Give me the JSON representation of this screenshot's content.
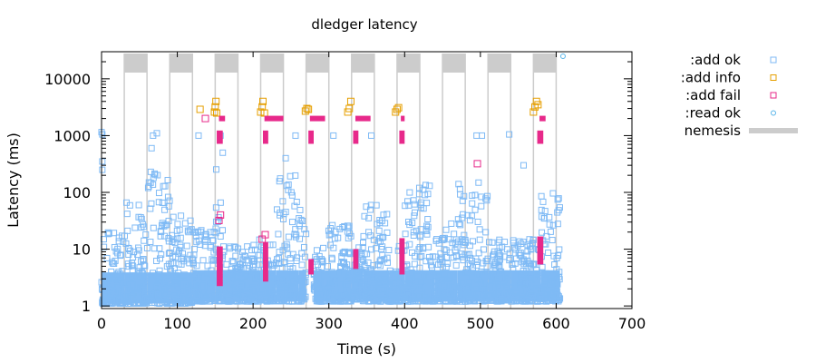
{
  "chart_data": {
    "type": "scatter",
    "title": "dledger latency",
    "xlabel": "Time (s)",
    "ylabel": "Latency (ms)",
    "xlim": [
      0,
      700
    ],
    "ylim": [
      0.9,
      30000
    ],
    "yscale": "log",
    "x_ticks": [
      0,
      100,
      200,
      300,
      400,
      500,
      600,
      700
    ],
    "y_ticks": [
      1,
      10,
      100,
      1000,
      10000
    ],
    "legend_position": "right",
    "grid": false,
    "series": [
      {
        "name": ":add ok",
        "marker": "square",
        "color": "#7fbaf5",
        "bands": [
          {
            "x": [
              0,
              30
            ],
            "low": 1.1,
            "high": 20
          },
          {
            "x": [
              30,
              60
            ],
            "low": 1.1,
            "high": 80
          },
          {
            "x": [
              60,
              90
            ],
            "low": 1.1,
            "high": 400
          },
          {
            "x": [
              90,
              120
            ],
            "low": 1.1,
            "high": 40
          },
          {
            "x": [
              120,
              150
            ],
            "low": 1.2,
            "high": 25
          },
          {
            "x": [
              150,
              160
            ],
            "low": 1.2,
            "high": 300
          },
          {
            "x": [
              160,
              210
            ],
            "low": 1.2,
            "high": 15
          },
          {
            "x": [
              210,
              230
            ],
            "low": 1.2,
            "high": 12
          },
          {
            "x": [
              230,
              260
            ],
            "low": 1.2,
            "high": 300
          },
          {
            "x": [
              260,
              270
            ],
            "low": 1.2,
            "high": 60
          },
          {
            "x": [
              280,
              295
            ],
            "low": 1.2,
            "high": 12
          },
          {
            "x": [
              295,
              330
            ],
            "low": 1.2,
            "high": 30
          },
          {
            "x": [
              330,
              345
            ],
            "low": 1.3,
            "high": 12
          },
          {
            "x": [
              345,
              380
            ],
            "low": 1.2,
            "high": 60
          },
          {
            "x": [
              380,
              400
            ],
            "low": 1.2,
            "high": 12
          },
          {
            "x": [
              400,
              440
            ],
            "low": 1.2,
            "high": 150
          },
          {
            "x": [
              440,
              470
            ],
            "low": 1.2,
            "high": 30
          },
          {
            "x": [
              470,
              510
            ],
            "low": 1.2,
            "high": 150
          },
          {
            "x": [
              510,
              540
            ],
            "low": 1.2,
            "high": 15
          },
          {
            "x": [
              540,
              580
            ],
            "low": 1.2,
            "high": 15
          },
          {
            "x": [
              580,
              605
            ],
            "low": 1.2,
            "high": 100
          }
        ],
        "outliers": [
          {
            "x": 0,
            "y": 1150
          },
          {
            "x": 1,
            "y": 1050
          },
          {
            "x": 1,
            "y": 350
          },
          {
            "x": 1,
            "y": 250
          },
          {
            "x": 66,
            "y": 600
          },
          {
            "x": 68,
            "y": 1000
          },
          {
            "x": 73,
            "y": 1100
          },
          {
            "x": 128,
            "y": 1000
          },
          {
            "x": 157,
            "y": 1000
          },
          {
            "x": 160,
            "y": 500
          },
          {
            "x": 243,
            "y": 400
          },
          {
            "x": 256,
            "y": 1000
          },
          {
            "x": 306,
            "y": 1000
          },
          {
            "x": 356,
            "y": 1000
          },
          {
            "x": 495,
            "y": 1000
          },
          {
            "x": 502,
            "y": 1000
          },
          {
            "x": 538,
            "y": 1050
          },
          {
            "x": 557,
            "y": 300
          }
        ]
      },
      {
        "name": ":add info",
        "marker": "square",
        "color": "#e69f00",
        "points": [
          {
            "x": 130,
            "y": 2900
          },
          {
            "x": 149,
            "y": 2600
          },
          {
            "x": 150,
            "y": 3200
          },
          {
            "x": 151,
            "y": 4000
          },
          {
            "x": 152,
            "y": 2500
          },
          {
            "x": 210,
            "y": 2600
          },
          {
            "x": 212,
            "y": 3200
          },
          {
            "x": 213,
            "y": 4000
          },
          {
            "x": 215,
            "y": 2500
          },
          {
            "x": 269,
            "y": 2700
          },
          {
            "x": 271,
            "y": 3000
          },
          {
            "x": 273,
            "y": 2900
          },
          {
            "x": 325,
            "y": 2600
          },
          {
            "x": 327,
            "y": 3000
          },
          {
            "x": 329,
            "y": 4000
          },
          {
            "x": 388,
            "y": 2600
          },
          {
            "x": 390,
            "y": 2900
          },
          {
            "x": 392,
            "y": 3100
          },
          {
            "x": 570,
            "y": 2600
          },
          {
            "x": 572,
            "y": 3200
          },
          {
            "x": 574,
            "y": 4000
          },
          {
            "x": 576,
            "y": 3500
          }
        ]
      },
      {
        "name": ":add fail",
        "marker": "square",
        "color": "#e7298a",
        "fill_bands": [
          {
            "x": [
              155,
              163
            ],
            "y": [
              2000,
              2000
            ]
          },
          {
            "x": [
              152,
              160
            ],
            "y": [
              800,
              1100
            ]
          },
          {
            "x": [
              152,
              160
            ],
            "y": [
              2.5,
              10
            ]
          },
          {
            "x": [
              215,
              240
            ],
            "y": [
              2000,
              2000
            ]
          },
          {
            "x": [
              213,
              220
            ],
            "y": [
              800,
              1100
            ]
          },
          {
            "x": [
              213,
              220
            ],
            "y": [
              3,
              12
            ]
          },
          {
            "x": [
              275,
              295
            ],
            "y": [
              2000,
              2000
            ]
          },
          {
            "x": [
              273,
              280
            ],
            "y": [
              800,
              1100
            ]
          },
          {
            "x": [
              273,
              280
            ],
            "y": [
              4,
              6
            ]
          },
          {
            "x": [
              335,
              355
            ],
            "y": [
              2000,
              2000
            ]
          },
          {
            "x": [
              332,
              339
            ],
            "y": [
              800,
              1100
            ]
          },
          {
            "x": [
              332,
              339
            ],
            "y": [
              5,
              9
            ]
          },
          {
            "x": [
              395,
              400
            ],
            "y": [
              2000,
              2000
            ]
          },
          {
            "x": [
              393,
              400
            ],
            "y": [
              800,
              1100
            ]
          },
          {
            "x": [
              393,
              400
            ],
            "y": [
              4,
              14
            ]
          },
          {
            "x": [
              578,
              586
            ],
            "y": [
              2000,
              2000
            ]
          },
          {
            "x": [
              575,
              583
            ],
            "y": [
              800,
              1100
            ]
          },
          {
            "x": [
              575,
              583
            ],
            "y": [
              6,
              15
            ]
          }
        ],
        "points": [
          {
            "x": 137,
            "y": 2000
          },
          {
            "x": 155,
            "y": 32
          },
          {
            "x": 157,
            "y": 40
          },
          {
            "x": 216,
            "y": 18
          },
          {
            "x": 212,
            "y": 15
          },
          {
            "x": 496,
            "y": 320
          }
        ]
      },
      {
        "name": ":read ok",
        "marker": "circle",
        "color": "#56b4e9",
        "points": [
          {
            "x": 609,
            "y": 25000
          }
        ]
      },
      {
        "name": "nemesis",
        "marker": "bar",
        "color": "#cccccc",
        "intervals": [
          [
            30,
            60
          ],
          [
            90,
            120
          ],
          [
            150,
            180
          ],
          [
            210,
            240
          ],
          [
            270,
            300
          ],
          [
            330,
            360
          ],
          [
            390,
            420
          ],
          [
            450,
            480
          ],
          [
            510,
            540
          ],
          [
            570,
            600
          ]
        ]
      }
    ]
  }
}
